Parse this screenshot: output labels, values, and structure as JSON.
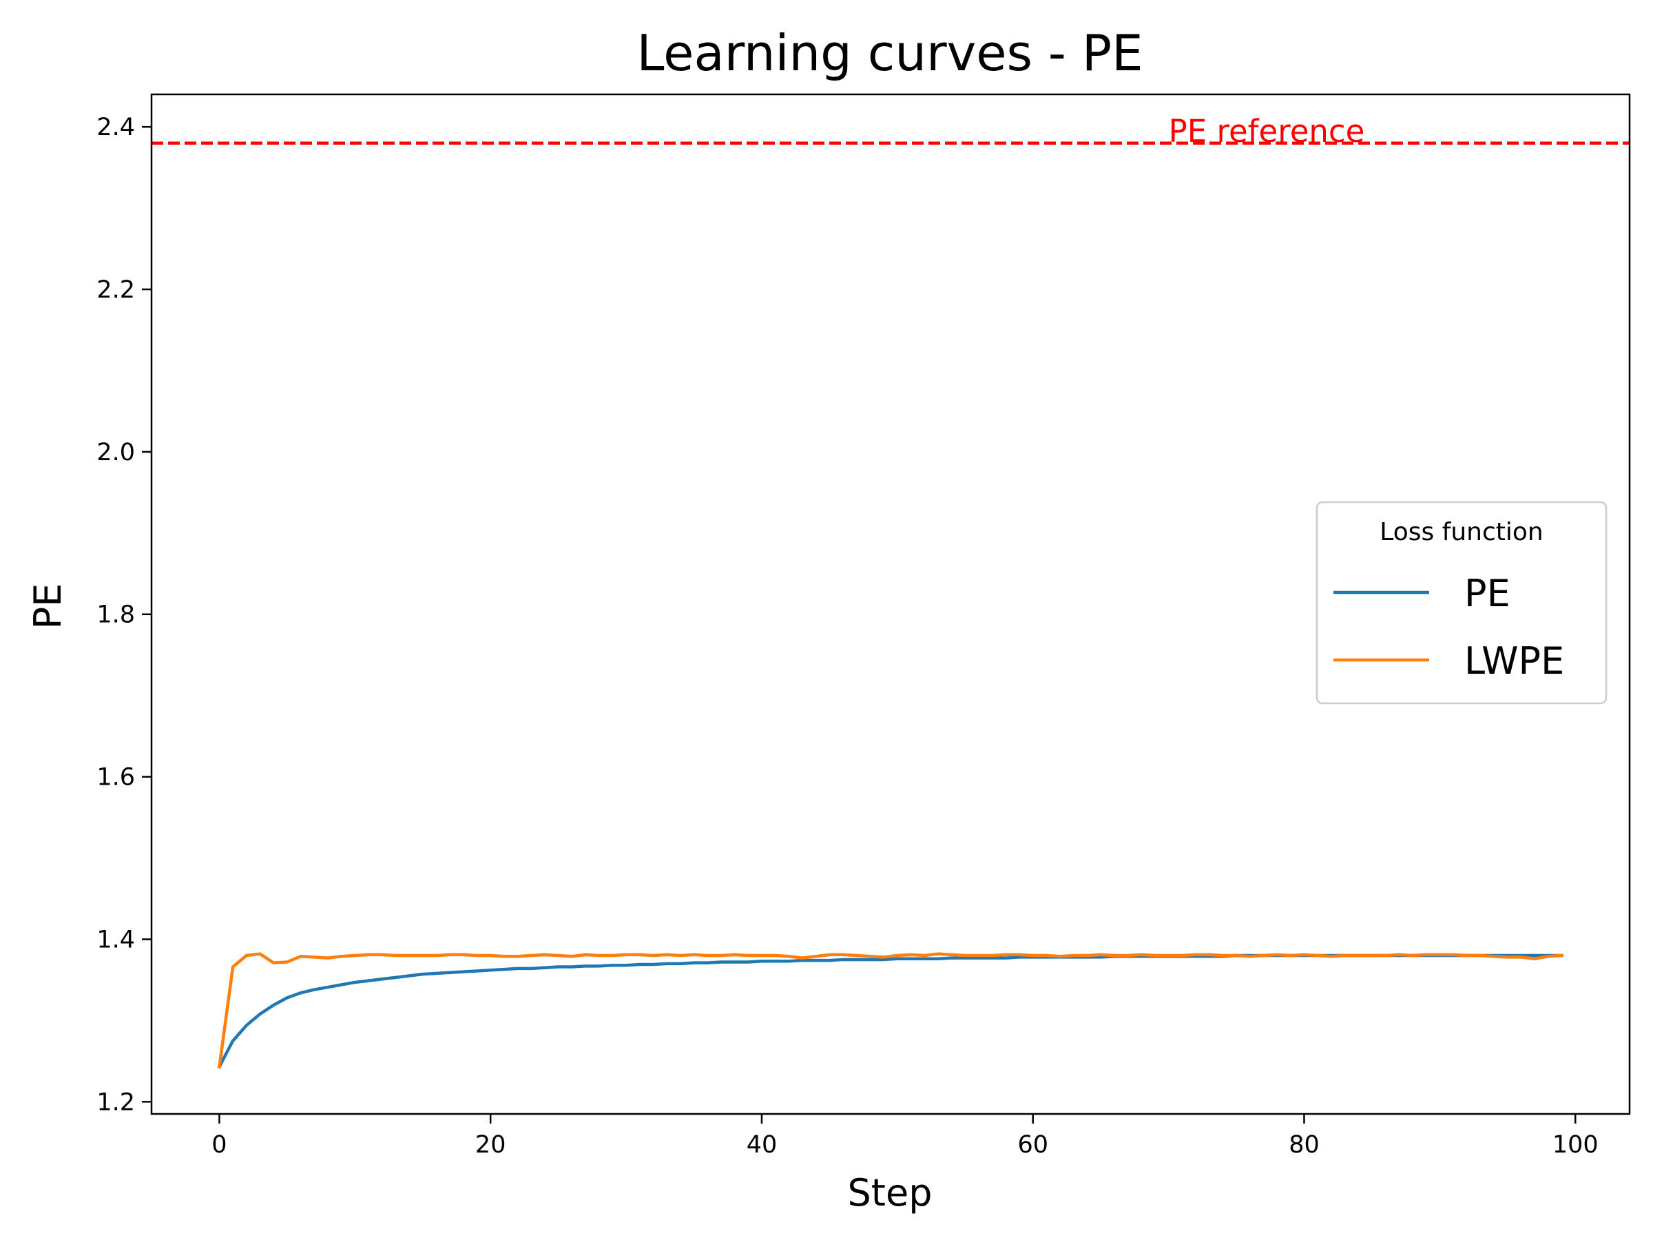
{
  "chart_data": {
    "type": "line",
    "title": "Learning curves - PE",
    "xlabel": "Step",
    "ylabel": "PE",
    "xlim": [
      -5,
      104
    ],
    "ylim": [
      1.185,
      2.44
    ],
    "xticks": [
      0,
      20,
      40,
      60,
      80,
      100
    ],
    "yticks": [
      1.2,
      1.4,
      1.6,
      1.8,
      2.0,
      2.2,
      2.4
    ],
    "xtick_labels": [
      "0",
      "20",
      "40",
      "60",
      "80",
      "100"
    ],
    "ytick_labels": [
      "1.2",
      "1.4",
      "1.6",
      "1.8",
      "2.0",
      "2.2",
      "2.4"
    ],
    "grid": false,
    "legend": {
      "title": "Loss function",
      "placement": "center-right"
    },
    "reference": {
      "label": "PE reference",
      "value": 2.38,
      "label_x": 70,
      "color": "#ff0000",
      "style": "dashed"
    },
    "x": [
      0,
      1,
      2,
      3,
      4,
      5,
      6,
      7,
      8,
      9,
      10,
      11,
      12,
      13,
      14,
      15,
      16,
      17,
      18,
      19,
      20,
      21,
      22,
      23,
      24,
      25,
      26,
      27,
      28,
      29,
      30,
      31,
      32,
      33,
      34,
      35,
      36,
      37,
      38,
      39,
      40,
      41,
      42,
      43,
      44,
      45,
      46,
      47,
      48,
      49,
      50,
      51,
      52,
      53,
      54,
      55,
      56,
      57,
      58,
      59,
      60,
      61,
      62,
      63,
      64,
      65,
      66,
      67,
      68,
      69,
      70,
      71,
      72,
      73,
      74,
      75,
      76,
      77,
      78,
      79,
      80,
      81,
      82,
      83,
      84,
      85,
      86,
      87,
      88,
      89,
      90,
      91,
      92,
      93,
      94,
      95,
      96,
      97,
      98,
      99
    ],
    "series": [
      {
        "name": "PE",
        "color": "#1f77b4",
        "values": [
          1.243,
          1.275,
          1.294,
          1.308,
          1.319,
          1.328,
          1.334,
          1.338,
          1.341,
          1.344,
          1.347,
          1.349,
          1.351,
          1.353,
          1.355,
          1.357,
          1.358,
          1.359,
          1.36,
          1.361,
          1.362,
          1.363,
          1.364,
          1.364,
          1.365,
          1.366,
          1.366,
          1.367,
          1.367,
          1.368,
          1.368,
          1.369,
          1.369,
          1.37,
          1.37,
          1.371,
          1.371,
          1.372,
          1.372,
          1.372,
          1.373,
          1.373,
          1.373,
          1.374,
          1.374,
          1.374,
          1.375,
          1.375,
          1.375,
          1.375,
          1.376,
          1.376,
          1.376,
          1.376,
          1.377,
          1.377,
          1.377,
          1.377,
          1.377,
          1.378,
          1.378,
          1.378,
          1.378,
          1.378,
          1.378,
          1.378,
          1.379,
          1.379,
          1.379,
          1.379,
          1.379,
          1.379,
          1.379,
          1.379,
          1.379,
          1.38,
          1.38,
          1.38,
          1.38,
          1.38,
          1.38,
          1.38,
          1.38,
          1.38,
          1.38,
          1.38,
          1.38,
          1.38,
          1.38,
          1.38,
          1.38,
          1.38,
          1.38,
          1.38,
          1.38,
          1.38,
          1.38,
          1.38,
          1.38,
          1.38
        ]
      },
      {
        "name": "LWPE",
        "color": "#ff7f0e",
        "values": [
          1.243,
          1.366,
          1.38,
          1.382,
          1.371,
          1.372,
          1.379,
          1.378,
          1.377,
          1.379,
          1.38,
          1.381,
          1.381,
          1.38,
          1.38,
          1.38,
          1.38,
          1.381,
          1.381,
          1.38,
          1.38,
          1.379,
          1.379,
          1.38,
          1.381,
          1.38,
          1.379,
          1.381,
          1.38,
          1.38,
          1.381,
          1.381,
          1.38,
          1.381,
          1.38,
          1.381,
          1.38,
          1.38,
          1.381,
          1.38,
          1.38,
          1.38,
          1.379,
          1.377,
          1.379,
          1.381,
          1.381,
          1.38,
          1.379,
          1.378,
          1.38,
          1.381,
          1.38,
          1.382,
          1.381,
          1.38,
          1.38,
          1.38,
          1.381,
          1.381,
          1.38,
          1.38,
          1.379,
          1.38,
          1.38,
          1.381,
          1.38,
          1.38,
          1.381,
          1.38,
          1.38,
          1.38,
          1.381,
          1.381,
          1.38,
          1.38,
          1.379,
          1.38,
          1.381,
          1.38,
          1.381,
          1.38,
          1.379,
          1.38,
          1.38,
          1.38,
          1.38,
          1.381,
          1.38,
          1.381,
          1.381,
          1.381,
          1.38,
          1.38,
          1.379,
          1.378,
          1.378,
          1.376,
          1.379,
          1.38
        ]
      }
    ]
  }
}
